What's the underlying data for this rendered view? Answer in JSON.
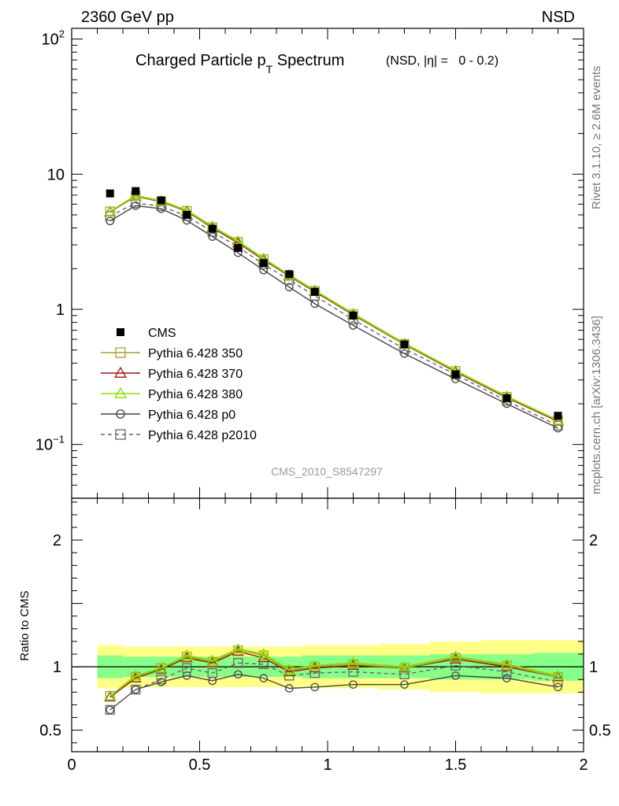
{
  "header": {
    "energy_label": "2360 GeV pp",
    "process_label": "NSD",
    "title_main": "Charged Particle p",
    "title_sub": "T",
    "title_tail": " Spectrum",
    "title_cut": "(NSD, |η| =   0 - 0.2)",
    "rivet_label": "Rivet 3.1.10, ≥ 2.6M events",
    "mcplots_label": "mcplots.cern.ch [arXiv:1306.3436]",
    "analysis_id": "CMS_2010_S8547297"
  },
  "colors": {
    "data": "#000000",
    "p350": "#a8a030",
    "p370": "#9a1414",
    "p380": "#88dd00",
    "p0": "#444444",
    "p2010": "#666666",
    "band_outer": "#ffff88",
    "band_inner": "#88ff88"
  },
  "chart_data": [
    {
      "type": "line",
      "panel": "main",
      "title": "Charged Particle pT Spectrum (NSD, |η| = 0 - 0.2)",
      "xlabel": "",
      "ylabel": "",
      "xlim": [
        0,
        2
      ],
      "ylim": [
        0.04,
        120
      ],
      "yscale": "log",
      "ytick_labels": [
        {
          "value": 100,
          "base": "10",
          "exp": "2"
        },
        {
          "value": 10,
          "base": "10",
          "exp": ""
        },
        {
          "value": 1,
          "base": "1",
          "exp": ""
        },
        {
          "value": 0.1,
          "base": "10",
          "exp": "−1"
        }
      ],
      "x": [
        0.15,
        0.25,
        0.35,
        0.45,
        0.55,
        0.65,
        0.75,
        0.85,
        0.95,
        1.1,
        1.3,
        1.5,
        1.7,
        1.9
      ],
      "series": [
        {
          "name": "CMS",
          "key": "data",
          "marker": "filled-square",
          "values": [
            7.2,
            7.5,
            6.4,
            5.0,
            3.95,
            2.85,
            2.2,
            1.82,
            1.35,
            0.9,
            0.55,
            0.33,
            0.22,
            0.163
          ]
        },
        {
          "name": "Pythia 6.428 350",
          "key": "p350",
          "marker": "open-square",
          "line": "solid",
          "values": [
            5.3,
            6.9,
            6.3,
            5.35,
            4.05,
            3.15,
            2.35,
            1.78,
            1.37,
            0.92,
            0.555,
            0.35,
            0.225,
            0.15
          ]
        },
        {
          "name": "Pythia 6.428 370",
          "key": "p370",
          "marker": "open-triangle",
          "line": "solid",
          "values": [
            5.25,
            6.85,
            6.25,
            5.3,
            4.0,
            3.1,
            2.32,
            1.76,
            1.35,
            0.91,
            0.55,
            0.345,
            0.222,
            0.148
          ]
        },
        {
          "name": "Pythia 6.428 380",
          "key": "p380",
          "marker": "open-triangle",
          "line": "solid",
          "values": [
            5.3,
            6.95,
            6.35,
            5.4,
            4.1,
            3.2,
            2.38,
            1.8,
            1.38,
            0.93,
            0.56,
            0.352,
            0.227,
            0.151
          ]
        },
        {
          "name": "Pythia 6.428 p0",
          "key": "p0",
          "marker": "open-circle",
          "line": "solid",
          "values": [
            4.5,
            5.85,
            5.55,
            4.55,
            3.45,
            2.62,
            1.95,
            1.46,
            1.1,
            0.76,
            0.47,
            0.305,
            0.2,
            0.132
          ]
        },
        {
          "name": "Pythia 6.428 p2010",
          "key": "p2010",
          "marker": "open-square",
          "line": "dashed",
          "values": [
            4.9,
            6.1,
            5.8,
            4.9,
            3.75,
            2.9,
            2.15,
            1.65,
            1.26,
            0.84,
            0.51,
            0.33,
            0.21,
            0.138
          ]
        }
      ]
    },
    {
      "type": "line",
      "panel": "ratio",
      "xlabel": "",
      "ylabel": "Ratio to CMS",
      "xlim": [
        0,
        2
      ],
      "ylim": [
        0.33,
        2.33
      ],
      "ytick_labels": [
        {
          "value": 2,
          "label": "2"
        },
        {
          "value": 1,
          "label": "1"
        },
        {
          "value": 0.5,
          "label": "0.5"
        }
      ],
      "xtick_labels": [
        {
          "value": 0,
          "label": "0"
        },
        {
          "value": 0.5,
          "label": "0.5"
        },
        {
          "value": 1,
          "label": "1"
        },
        {
          "value": 1.5,
          "label": "1.5"
        },
        {
          "value": 2,
          "label": "2"
        }
      ],
      "reference_line": 1,
      "band_bins": [
        0.1,
        0.2,
        0.3,
        0.4,
        0.5,
        0.6,
        0.7,
        0.8,
        0.9,
        1.0,
        1.2,
        1.4,
        1.6,
        1.8,
        2.0
      ],
      "band_outer": [
        0.17,
        0.16,
        0.16,
        0.16,
        0.16,
        0.16,
        0.16,
        0.16,
        0.17,
        0.17,
        0.18,
        0.2,
        0.21,
        0.21
      ],
      "band_inner": [
        0.09,
        0.08,
        0.08,
        0.08,
        0.08,
        0.08,
        0.08,
        0.08,
        0.09,
        0.09,
        0.09,
        0.1,
        0.1,
        0.11
      ],
      "x": [
        0.15,
        0.25,
        0.35,
        0.45,
        0.55,
        0.65,
        0.75,
        0.85,
        0.95,
        1.1,
        1.3,
        1.5,
        1.7,
        1.9
      ],
      "series": [
        {
          "name": "Pythia 6.428 350",
          "key": "p350",
          "marker": "open-square",
          "line": "solid",
          "values": [
            0.77,
            0.92,
            0.99,
            1.08,
            1.04,
            1.13,
            1.09,
            0.97,
            1.0,
            1.02,
            0.99,
            1.07,
            1.01,
            0.92
          ]
        },
        {
          "name": "Pythia 6.428 370",
          "key": "p370",
          "marker": "open-triangle",
          "line": "solid",
          "values": [
            0.76,
            0.91,
            0.98,
            1.07,
            1.03,
            1.12,
            1.07,
            0.96,
            0.99,
            1.01,
            0.99,
            1.06,
            1.0,
            0.92
          ]
        },
        {
          "name": "Pythia 6.428 380",
          "key": "p380",
          "marker": "open-triangle",
          "line": "solid",
          "values": [
            0.77,
            0.93,
            0.99,
            1.09,
            1.05,
            1.14,
            1.1,
            0.98,
            1.01,
            1.03,
            1.0,
            1.08,
            1.02,
            0.93
          ]
        },
        {
          "name": "Pythia 6.428 p0",
          "key": "p0",
          "marker": "open-circle",
          "line": "solid",
          "values": [
            0.66,
            0.82,
            0.88,
            0.93,
            0.89,
            0.94,
            0.91,
            0.83,
            0.84,
            0.86,
            0.86,
            0.93,
            0.91,
            0.84
          ]
        },
        {
          "name": "Pythia 6.428 p2010",
          "key": "p2010",
          "marker": "open-square",
          "line": "dashed",
          "values": [
            0.66,
            0.82,
            0.9,
            0.99,
            0.95,
            1.03,
            1.02,
            0.93,
            0.95,
            0.96,
            0.94,
            1.01,
            0.96,
            0.88
          ]
        }
      ]
    }
  ]
}
